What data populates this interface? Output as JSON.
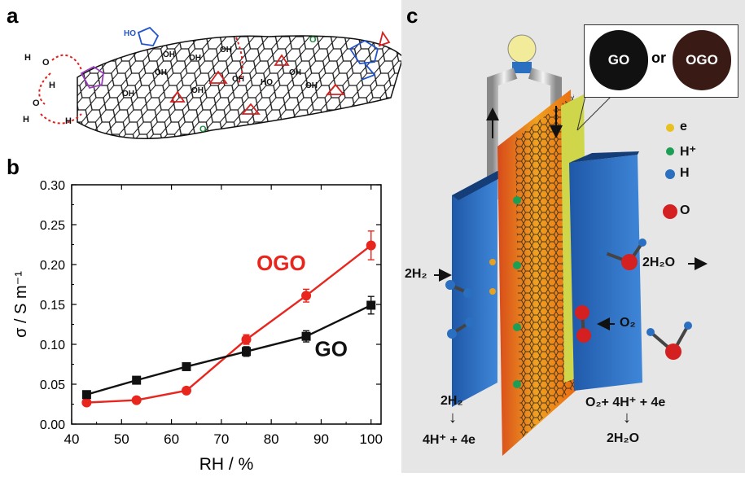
{
  "panels": {
    "a": {
      "label": "a"
    },
    "b": {
      "label": "b"
    },
    "c": {
      "label": "c"
    }
  },
  "structure_labels": {
    "hydroxyl": "OH",
    "ho": "HO",
    "water_h": "H",
    "water_o": "O",
    "carbonyl": "O"
  },
  "chart_data": {
    "type": "line",
    "xlabel": "RH / %",
    "ylabel": "σ / S m⁻¹",
    "xlim": [
      40,
      102
    ],
    "ylim": [
      0.0,
      0.3
    ],
    "xticks": [
      "40",
      "50",
      "60",
      "70",
      "80",
      "90",
      "100"
    ],
    "yticks": [
      "0.00",
      "0.05",
      "0.10",
      "0.15",
      "0.20",
      "0.25",
      "0.30"
    ],
    "series": [
      {
        "name": "OGO",
        "color": "#e8261e",
        "marker": "circle",
        "x": [
          43,
          53,
          63,
          75,
          87,
          100
        ],
        "y": [
          0.027,
          0.03,
          0.042,
          0.106,
          0.161,
          0.224
        ],
        "err": [
          0.002,
          0.002,
          0.002,
          0.006,
          0.008,
          0.018
        ]
      },
      {
        "name": "GO",
        "color": "#111111",
        "marker": "square",
        "x": [
          43,
          53,
          63,
          75,
          87,
          100
        ],
        "y": [
          0.037,
          0.055,
          0.072,
          0.091,
          0.11,
          0.149
        ],
        "err": [
          0.002,
          0.002,
          0.004,
          0.006,
          0.007,
          0.011
        ]
      }
    ]
  },
  "fuel_cell": {
    "photo_go": "GO",
    "photo_or": "or",
    "photo_ogo": "OGO",
    "legend": [
      {
        "label": "e",
        "color": "#e8c020"
      },
      {
        "label": "H⁺",
        "color": "#1c9e55"
      },
      {
        "label": "H",
        "color": "#2a6fc0"
      },
      {
        "label": "O",
        "color": "#d42020"
      }
    ],
    "inlet_h2": "2H₂",
    "outlet_h2o": "2H₂O",
    "inlet_o2": "O₂",
    "anode_top": "2H₂",
    "anode_bottom": "4H⁺ + 4e",
    "cathode_top": "O₂+ 4H⁺ + 4e",
    "cathode_bottom": "2H₂O",
    "arrow_down": "↓"
  }
}
